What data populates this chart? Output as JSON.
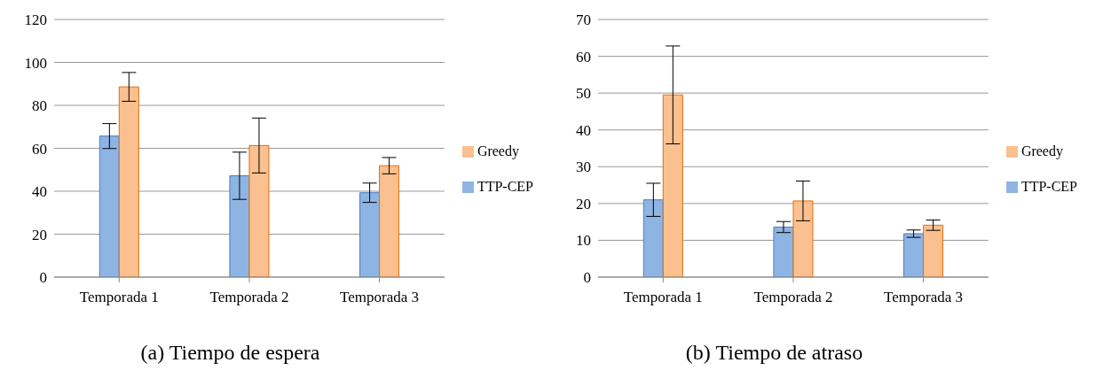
{
  "chart_data": [
    {
      "type": "bar",
      "title": "(a) Tiempo de espera",
      "categories": [
        "Temporada 1",
        "Temporada 2",
        "Temporada 3"
      ],
      "series": [
        {
          "name": "TTP-CEP",
          "color": "#8eb4e3",
          "values": [
            65.7,
            47.2,
            39.3
          ],
          "errors": [
            5.8,
            11,
            4.5
          ]
        },
        {
          "name": "Greedy",
          "color": "#fac090",
          "values": [
            88.6,
            61.3,
            51.9
          ],
          "errors": [
            6.7,
            12.8,
            3.8
          ]
        }
      ],
      "ylim": [
        0,
        120
      ],
      "yticks": [
        0,
        20,
        40,
        60,
        80,
        100,
        120
      ],
      "grid": "y",
      "legend": "right"
    },
    {
      "type": "bar",
      "title": "(b) Tiempo de atraso",
      "categories": [
        "Temporada 1",
        "Temporada 2",
        "Temporada 3"
      ],
      "series": [
        {
          "name": "TTP-CEP",
          "color": "#8eb4e3",
          "values": [
            21.0,
            13.6,
            11.8
          ],
          "errors": [
            4.5,
            1.5,
            1.0
          ]
        },
        {
          "name": "Greedy",
          "color": "#fac090",
          "values": [
            49.5,
            20.7,
            14.1
          ],
          "errors": [
            13.3,
            5.4,
            1.4
          ]
        }
      ],
      "ylim": [
        0,
        70
      ],
      "yticks": [
        0,
        10,
        20,
        30,
        40,
        50,
        60,
        70
      ],
      "grid": "y",
      "legend": "right"
    }
  ]
}
